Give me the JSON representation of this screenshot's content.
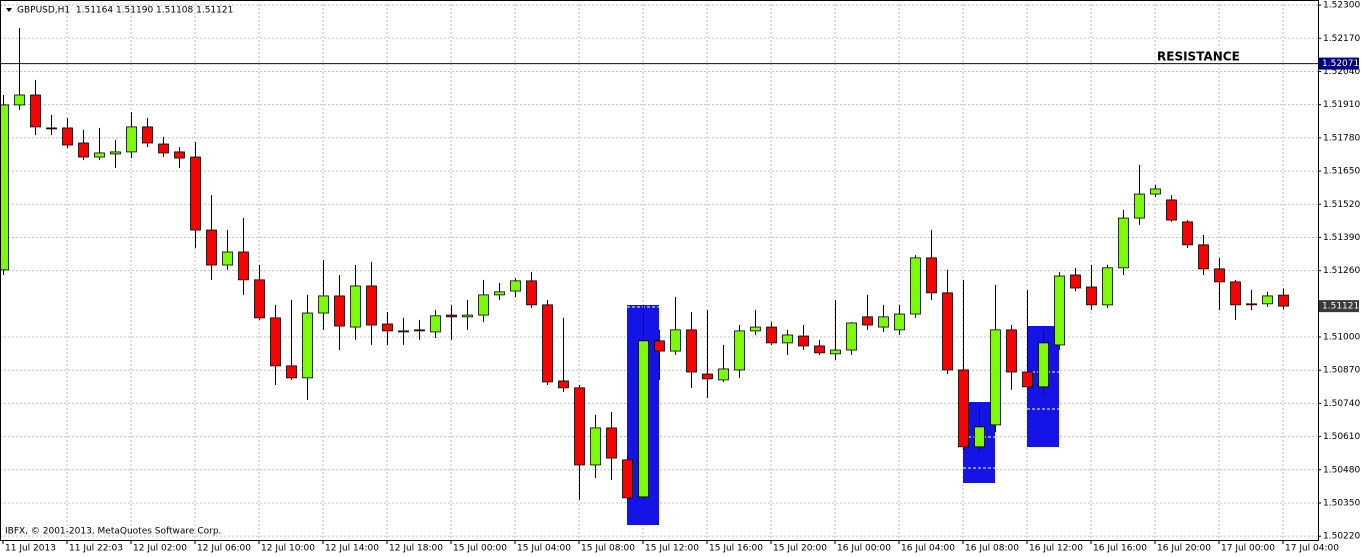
{
  "chart_data": {
    "type": "candlestick",
    "title": "GBPUSD,H1  1.51164 1.51190 1.51108 1.51121",
    "footer": "IBFX, © 2001-2013, MetaQuotes Software Corp.",
    "annotation": "RESISTANCE",
    "hline": {
      "value": 1.52071,
      "label": "1.52071"
    },
    "last_price": {
      "value": 1.51121,
      "label": "1.51121"
    },
    "categories": [
      "11 Jul 2013",
      null,
      null,
      null,
      "11 Jul 22:03",
      null,
      null,
      null,
      "12 Jul 02:00",
      null,
      null,
      null,
      "12 Jul 06:00",
      null,
      null,
      null,
      "12 Jul 10:00",
      null,
      null,
      null,
      "12 Jul 14:00",
      null,
      null,
      null,
      "12 Jul 18:00",
      null,
      null,
      null,
      "15 Jul 00:00",
      null,
      null,
      null,
      "15 Jul 04:00",
      null,
      null,
      null,
      "15 Jul 08:00",
      null,
      null,
      null,
      "15 Jul 12:00",
      null,
      null,
      null,
      "15 Jul 16:00",
      null,
      null,
      null,
      "15 Jul 20:00",
      null,
      null,
      null,
      "16 Jul 00:00",
      null,
      null,
      null,
      "16 Jul 04:00",
      null,
      null,
      null,
      "16 Jul 08:00",
      null,
      null,
      null,
      "16 Jul 12:00",
      null,
      null,
      null,
      "16 Jul 16:00",
      null,
      null,
      null,
      "16 Jul 20:00",
      null,
      null,
      null,
      "17 Jul 00:00",
      null,
      null,
      null,
      "17 Jul 04:00"
    ],
    "open": [
      1.51263,
      1.51909,
      1.51948,
      1.51819,
      1.51819,
      1.5176,
      1.51705,
      1.51717,
      1.51725,
      1.51823,
      1.51756,
      1.51725,
      1.51705,
      1.51419,
      1.51282,
      1.51333,
      1.51224,
      1.51075,
      1.50887,
      1.5084,
      1.51094,
      1.51161,
      1.51039,
      1.512,
      1.51051,
      1.51024,
      1.51028,
      1.5102,
      1.51086,
      1.51079,
      1.51086,
      1.51165,
      1.5118,
      1.5122,
      1.51126,
      1.50828,
      1.50801,
      1.50499,
      1.50644,
      1.50519,
      1.50374,
      1.50985,
      1.50945,
      1.51028,
      1.50855,
      1.50832,
      1.50871,
      1.51024,
      1.51039,
      1.50977,
      1.51004,
      1.50965,
      1.50934,
      1.50949,
      1.51079,
      1.51039,
      1.51028,
      1.5109,
      1.5131,
      1.51173,
      1.50871,
      1.5057,
      1.50656,
      1.51028,
      1.50863,
      1.50805,
      1.50969,
      1.51243,
      1.51196,
      1.51126,
      1.51271,
      1.51466,
      1.5156,
      1.51537,
      1.51451,
      1.51361,
      1.51267,
      1.51216,
      1.5113,
      1.5113,
      1.51164
    ],
    "high": [
      1.51948,
      1.5221,
      1.52007,
      1.5187,
      1.51858,
      1.51811,
      1.51819,
      1.51772,
      1.51881,
      1.51858,
      1.51784,
      1.51744,
      1.51764,
      1.51556,
      1.51419,
      1.51466,
      1.51282,
      1.51126,
      1.51145,
      1.51165,
      1.51302,
      1.51243,
      1.51282,
      1.51294,
      1.51098,
      1.51075,
      1.51067,
      1.51106,
      1.51126,
      1.51145,
      1.51224,
      1.51212,
      1.51231,
      1.51255,
      1.51145,
      1.51075,
      1.50812,
      1.50695,
      1.50707,
      1.50538,
      1.51126,
      1.51028,
      1.51157,
      1.51098,
      1.51106,
      1.50969,
      1.51047,
      1.51106,
      1.51059,
      1.51028,
      1.51047,
      1.50989,
      1.51145,
      1.51059,
      1.51165,
      1.51126,
      1.51126,
      1.51321,
      1.51419,
      1.51263,
      1.51224,
      1.50734,
      1.51204,
      1.51047,
      1.51184,
      1.51028,
      1.51255,
      1.51271,
      1.51282,
      1.51282,
      1.51498,
      1.51674,
      1.51596,
      1.51556,
      1.51458,
      1.514,
      1.5131,
      1.51224,
      1.51184,
      1.51177,
      1.5119
    ],
    "low": [
      1.51243,
      1.51889,
      1.51791,
      1.51791,
      1.5174,
      1.51693,
      1.51693,
      1.51662,
      1.51701,
      1.51744,
      1.51705,
      1.51662,
      1.51349,
      1.51224,
      1.51263,
      1.51165,
      1.51067,
      1.50812,
      1.50832,
      1.50754,
      1.51028,
      1.50949,
      1.50989,
      1.50969,
      1.50969,
      1.50969,
      1.50989,
      1.50996,
      1.50989,
      1.51028,
      1.51059,
      1.51145,
      1.51157,
      1.51114,
      1.50812,
      1.50785,
      1.50362,
      1.50448,
      1.5044,
      1.50362,
      1.50362,
      1.50832,
      1.5093,
      1.50801,
      1.50761,
      1.50824,
      1.5084,
      1.51008,
      1.50969,
      1.5093,
      1.50949,
      1.5093,
      1.5091,
      1.5093,
      1.51028,
      1.5102,
      1.51008,
      1.51075,
      1.51145,
      1.50855,
      1.50558,
      1.5055,
      1.50628,
      1.50793,
      1.50793,
      1.50773,
      1.50949,
      1.5118,
      1.51106,
      1.51114,
      1.51243,
      1.51439,
      1.51549,
      1.51451,
      1.51349,
      1.51243,
      1.51106,
      1.51067,
      1.51106,
      1.51118,
      1.51108
    ],
    "close": [
      1.51909,
      1.51948,
      1.51823,
      1.51815,
      1.51752,
      1.51705,
      1.51721,
      1.51725,
      1.51823,
      1.5176,
      1.51721,
      1.51701,
      1.51419,
      1.51282,
      1.51333,
      1.51224,
      1.51075,
      1.50887,
      1.5084,
      1.51094,
      1.51161,
      1.51043,
      1.512,
      1.51047,
      1.51024,
      1.5102,
      1.51024,
      1.51083,
      1.51079,
      1.51086,
      1.51165,
      1.51177,
      1.5122,
      1.51126,
      1.50824,
      1.50801,
      1.50499,
      1.50644,
      1.50526,
      1.5037,
      1.50985,
      1.50945,
      1.51028,
      1.50863,
      1.50836,
      1.50875,
      1.51024,
      1.51039,
      1.50977,
      1.51008,
      1.50965,
      1.50938,
      1.50949,
      1.51055,
      1.51047,
      1.51079,
      1.5109,
      1.5131,
      1.51173,
      1.50871,
      1.5057,
      1.50648,
      1.51028,
      1.50863,
      1.50805,
      1.50977,
      1.51239,
      1.51192,
      1.51126,
      1.51271,
      1.51466,
      1.5156,
      1.5158,
      1.51458,
      1.51361,
      1.51267,
      1.51216,
      1.51126,
      1.51126,
      1.51161,
      1.51121
    ],
    "up_color": "#7cfc00",
    "down_color": "#ff0000",
    "ylim": [
      1.50205,
      1.5232
    ],
    "yticks": [
      {
        "value": 1.523,
        "label": "1.52300"
      },
      {
        "value": 1.5217,
        "label": "1.52170"
      },
      {
        "value": 1.5204,
        "label": "1.52040"
      },
      {
        "value": 1.5191,
        "label": "1.51910"
      },
      {
        "value": 1.5178,
        "label": "1.51780"
      },
      {
        "value": 1.5165,
        "label": "1.51650"
      },
      {
        "value": 1.5152,
        "label": "1.51520"
      },
      {
        "value": 1.5139,
        "label": "1.51390"
      },
      {
        "value": 1.5126,
        "label": "1.51260"
      },
      {
        "value": 1.51,
        "label": "1.51000"
      },
      {
        "value": 1.5087,
        "label": "1.50870"
      },
      {
        "value": 1.5074,
        "label": "1.50740"
      },
      {
        "value": 1.5061,
        "label": "1.50610"
      },
      {
        "value": 1.5048,
        "label": "1.50480"
      },
      {
        "value": 1.5035,
        "label": "1.50350"
      },
      {
        "value": 1.5022,
        "label": "1.50220"
      }
    ],
    "grid": true
  }
}
